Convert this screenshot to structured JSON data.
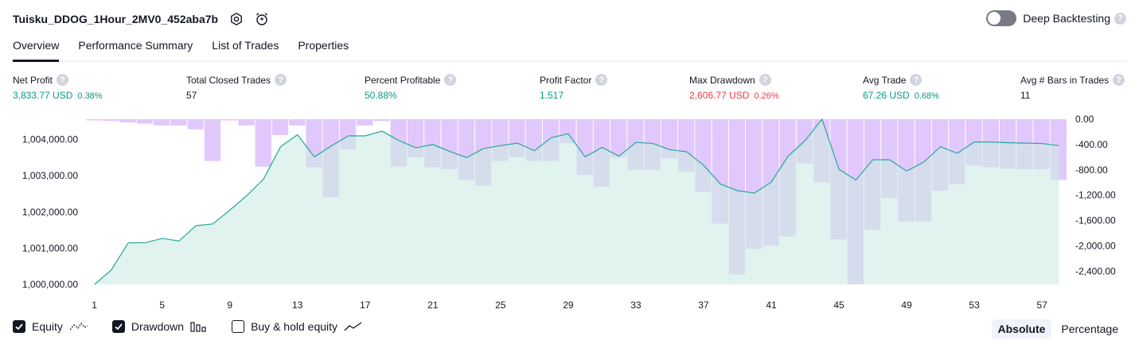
{
  "header": {
    "title": "Tuisku_DDOG_1Hour_2MV0_452aba7b",
    "deep_backtesting_label": "Deep Backtesting",
    "help_glyph": "?"
  },
  "tabs": [
    {
      "label": "Overview",
      "active": true
    },
    {
      "label": "Performance Summary",
      "active": false
    },
    {
      "label": "List of Trades",
      "active": false
    },
    {
      "label": "Properties",
      "active": false
    }
  ],
  "metrics": [
    {
      "label": "Net Profit",
      "value": "3,833.77 USD",
      "pct": "0.38%",
      "tone": "pos"
    },
    {
      "label": "Total Closed Trades",
      "value": "57",
      "pct": "",
      "tone": "neutral"
    },
    {
      "label": "Percent Profitable",
      "value": "50.88%",
      "pct": "",
      "tone": "pos"
    },
    {
      "label": "Profit Factor",
      "value": "1.517",
      "pct": "",
      "tone": "pos"
    },
    {
      "label": "Max Drawdown",
      "value": "2,606.77 USD",
      "pct": "0.26%",
      "tone": "neg"
    },
    {
      "label": "Avg Trade",
      "value": "67.26 USD",
      "pct": "0.68%",
      "tone": "pos"
    },
    {
      "label": "Avg # Bars in Trades",
      "value": "11",
      "pct": "",
      "tone": "neutral"
    }
  ],
  "legend": {
    "equity": "Equity",
    "drawdown": "Drawdown",
    "buy_hold": "Buy & hold equity",
    "equity_checked": true,
    "drawdown_checked": true,
    "buy_hold_checked": false
  },
  "modes": {
    "absolute": "Absolute",
    "percentage": "Percentage",
    "selected": "absolute"
  },
  "colors": {
    "equity_line": "#26a69a",
    "equity_fill": "#cdebe3",
    "drawdown_bar": "#e1c8fc",
    "positive": "#089981",
    "negative": "#f23645"
  },
  "chart_data": {
    "type": "area",
    "x": [
      1,
      2,
      3,
      4,
      5,
      6,
      7,
      8,
      9,
      10,
      11,
      12,
      13,
      14,
      15,
      16,
      17,
      18,
      19,
      20,
      21,
      22,
      23,
      24,
      25,
      26,
      27,
      28,
      29,
      30,
      31,
      32,
      33,
      34,
      35,
      36,
      37,
      38,
      39,
      40,
      41,
      42,
      43,
      44,
      45,
      46,
      47,
      48,
      49,
      50,
      51,
      52,
      53,
      54,
      55,
      56,
      57,
      58
    ],
    "x_ticks": [
      1,
      5,
      9,
      13,
      17,
      21,
      25,
      29,
      33,
      37,
      41,
      45,
      49,
      53,
      57
    ],
    "x_tick_labels": [
      "1",
      "5",
      "9",
      "13",
      "17",
      "21",
      "25",
      "29",
      "33",
      "37",
      "41",
      "45",
      "49",
      "53",
      "57"
    ],
    "series": [
      {
        "name": "Equity",
        "axis": "left",
        "values": [
          1000000,
          1000400,
          1001150,
          1001150,
          1001270,
          1001200,
          1001620,
          1001670,
          1002050,
          1002450,
          1002910,
          1003800,
          1004130,
          1003520,
          1003820,
          1004100,
          1004100,
          1004230,
          1003970,
          1003770,
          1003860,
          1003670,
          1003500,
          1003750,
          1003830,
          1003900,
          1003690,
          1004050,
          1004160,
          1003520,
          1003780,
          1003540,
          1003920,
          1003890,
          1003720,
          1003660,
          1003290,
          1002770,
          1002590,
          1002520,
          1002820,
          1003540,
          1003970,
          1004560,
          1003180,
          1002880,
          1003440,
          1003440,
          1003130,
          1003370,
          1003800,
          1003620,
          1003930,
          1003930,
          1003910,
          1003900,
          1003890,
          1003830
        ]
      },
      {
        "name": "Drawdown",
        "axis": "right",
        "values": [
          -20,
          -30,
          -50,
          -70,
          -100,
          -100,
          -160,
          -660,
          -20,
          -100,
          -750,
          -250,
          -100,
          -760,
          -1230,
          -480,
          -100,
          -30,
          -750,
          -600,
          -760,
          -790,
          -960,
          -1050,
          -660,
          -600,
          -660,
          -660,
          -380,
          -880,
          -1070,
          -610,
          -800,
          -800,
          -620,
          -830,
          -1150,
          -1650,
          -2450,
          -2050,
          -2000,
          -1850,
          -700,
          -1000,
          -1900,
          -2610,
          -1750,
          -1250,
          -1620,
          -1620,
          -1130,
          -1030,
          -730,
          -760,
          -780,
          -790,
          -790,
          -960
        ]
      }
    ],
    "y_left_ticks": [
      1000000,
      1001000,
      1002000,
      1003000,
      1004000
    ],
    "y_left_tick_labels": [
      "1,000,000.00",
      "1,001,000.00",
      "1,002,000.00",
      "1,003,000.00",
      "1,004,000.00"
    ],
    "y_right_ticks": [
      0,
      -400,
      -800,
      -1200,
      -1600,
      -2000,
      -2400
    ],
    "y_right_tick_labels": [
      "0.00",
      "-400.00",
      "-800.00",
      "-1,200.00",
      "-1,600.00",
      "-2,000.00",
      "-2,400.00"
    ],
    "ylim_left": [
      1000000,
      1004560
    ],
    "ylim_right": [
      -2610,
      0
    ]
  }
}
